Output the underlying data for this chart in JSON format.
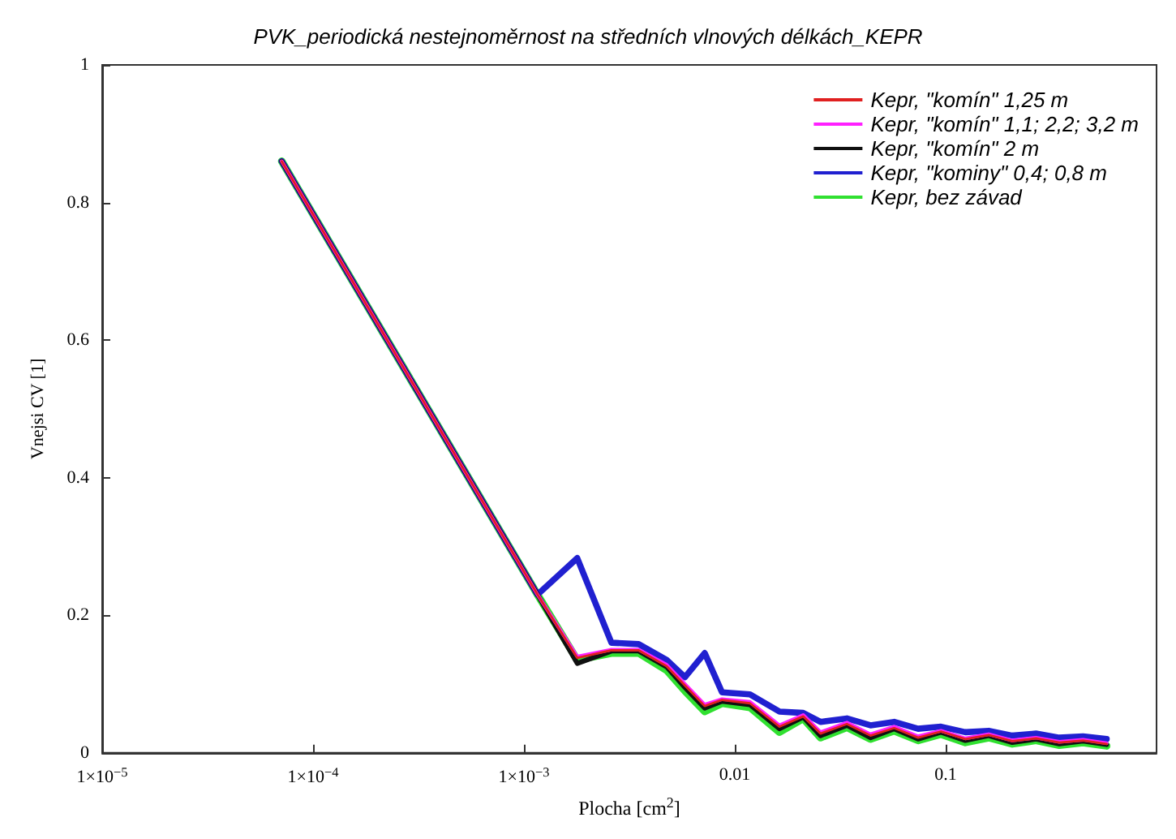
{
  "chart_data": {
    "type": "line",
    "title": "PVK_periodická nestejnoměrnost na středních vlnových délkách_KEPR",
    "xlabel": "Plocha [cm$^{2}$]",
    "ylabel": "Vnejsi CV [1]",
    "log": "x",
    "xlim": [
      1e-05,
      1
    ],
    "xticks": [
      {
        "value": 1e-05,
        "label": "1×10$^{−5}$"
      },
      {
        "value": 0.0001,
        "label": "1×10$^{−4}$"
      },
      {
        "value": 0.001,
        "label": "1×10$^{−3}$"
      },
      0.01,
      0.1
    ],
    "ylim": [
      0,
      1
    ],
    "yticks": [
      0,
      0.2,
      0.4,
      0.6,
      0.8,
      1
    ],
    "legend": "top right",
    "marker": "none",
    "line_style": "solid",
    "x": [
      7.1e-05,
      0.00116,
      0.00179,
      0.0026,
      0.0035,
      0.00475,
      0.0058,
      0.0072,
      0.0087,
      0.0118,
      0.0163,
      0.0211,
      0.0255,
      0.034,
      0.044,
      0.057,
      0.074,
      0.095,
      0.124,
      0.16,
      0.207,
      0.268,
      0.346,
      0.448,
      0.58
    ],
    "series": [
      {
        "name": "Kepr, \"komín\" 1,25 m",
        "color": "#e02020",
        "values": [
          0.86,
          0.23,
          0.138,
          0.149,
          0.149,
          0.126,
          0.098,
          0.068,
          0.077,
          0.072,
          0.038,
          0.053,
          0.028,
          0.042,
          0.025,
          0.036,
          0.022,
          0.031,
          0.02,
          0.026,
          0.017,
          0.021,
          0.015,
          0.018,
          0.013
        ]
      },
      {
        "name": "Kepr, \"komín\" 1,1; 2,2; 3,2 m",
        "color": "#ff20ff",
        "values": [
          0.86,
          0.23,
          0.14,
          0.15,
          0.15,
          0.128,
          0.1,
          0.07,
          0.078,
          0.074,
          0.04,
          0.055,
          0.03,
          0.044,
          0.027,
          0.038,
          0.024,
          0.032,
          0.021,
          0.027,
          0.018,
          0.022,
          0.016,
          0.019,
          0.014
        ]
      },
      {
        "name": "Kepr, \"komín\" 2 m",
        "color": "#101010",
        "values": [
          0.86,
          0.23,
          0.13,
          0.148,
          0.148,
          0.125,
          0.095,
          0.065,
          0.075,
          0.07,
          0.035,
          0.052,
          0.025,
          0.04,
          0.022,
          0.035,
          0.02,
          0.03,
          0.018,
          0.025,
          0.015,
          0.02,
          0.013,
          0.017,
          0.012
        ]
      },
      {
        "name": "Kepr, \"kominy\" 0,4; 0,8 m",
        "color": "#2020d0",
        "values": [
          0.86,
          0.23,
          0.283,
          0.16,
          0.158,
          0.135,
          0.11,
          0.145,
          0.088,
          0.085,
          0.06,
          0.058,
          0.045,
          0.05,
          0.04,
          0.045,
          0.035,
          0.038,
          0.03,
          0.032,
          0.025,
          0.028,
          0.022,
          0.024,
          0.02
        ]
      },
      {
        "name": "Kepr, bez závad",
        "color": "#30e030",
        "values": [
          0.86,
          0.23,
          0.135,
          0.145,
          0.145,
          0.12,
          0.09,
          0.06,
          0.072,
          0.066,
          0.03,
          0.05,
          0.022,
          0.037,
          0.02,
          0.032,
          0.018,
          0.027,
          0.015,
          0.022,
          0.013,
          0.018,
          0.011,
          0.015,
          0.01
        ]
      }
    ]
  }
}
